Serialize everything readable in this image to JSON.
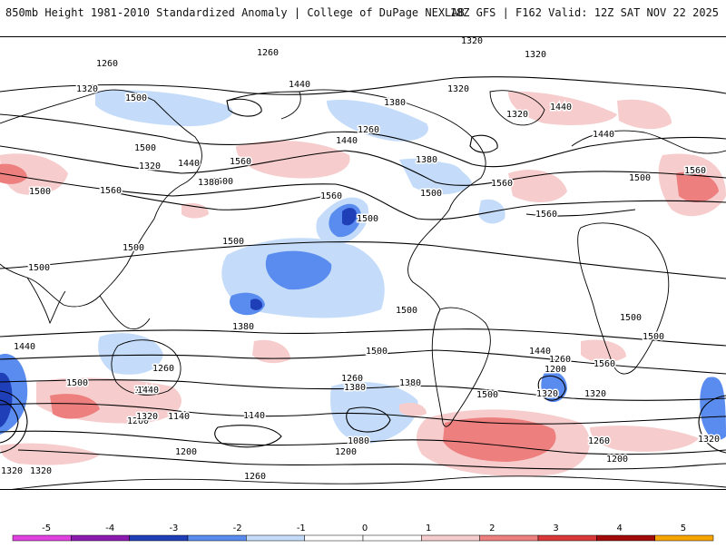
{
  "header": {
    "left_title": "850mb Height 1981-2010 Standardized Anomaly | College of DuPage NEXLAB",
    "right_title": "18Z GFS | F162 Valid: 12Z SAT NOV 22 2025"
  },
  "colors": {
    "neg5": "#e040e0",
    "neg4": "#8a1ab0",
    "neg3": "#1f3fb8",
    "neg2": "#5a8cf0",
    "neg1": "#c4dcfa",
    "pos1": "#f6cccc",
    "pos2": "#ee7f7f",
    "pos3": "#d83838",
    "pos4": "#a00a0a",
    "pos5": "#f5a400",
    "contour": "#000000",
    "coast": "#000000"
  },
  "colorbar": {
    "ticks": [
      "-5",
      "-4",
      "-3",
      "-2",
      "-1",
      "0",
      "1",
      "2",
      "3",
      "4",
      "5"
    ]
  },
  "contour_labels": [
    "1320",
    "1260",
    "1260",
    "1320",
    "1320",
    "1440",
    "1500",
    "1320",
    "1260",
    "1320",
    "1440",
    "1500",
    "1380",
    "1320",
    "1440",
    "1500",
    "1560",
    "1440",
    "1380",
    "1500",
    "1560",
    "1560",
    "1500",
    "1380",
    "1440",
    "1560",
    "1560",
    "1500",
    "1560",
    "1500",
    "1500",
    "1500",
    "1500",
    "1500",
    "1500",
    "1500",
    "1380",
    "1440",
    "1320",
    "1260",
    "1260",
    "1380",
    "1500",
    "1500",
    "1440",
    "1260",
    "1200",
    "1140",
    "1320",
    "1380",
    "1500",
    "1440",
    "1260",
    "1200",
    "1320",
    "1560",
    "1140",
    "1080",
    "1200",
    "1320",
    "1260",
    "1200",
    "1320",
    "1320",
    "1260",
    "1320"
  ]
}
